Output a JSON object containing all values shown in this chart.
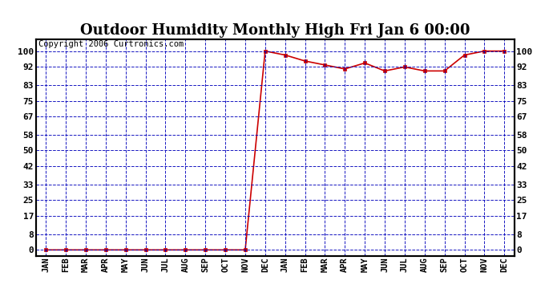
{
  "title": "Outdoor Humidity Monthly High Fri Jan 6 00:00",
  "copyright": "Copyright 2006 Curtronics.com",
  "x_labels": [
    "JAN",
    "FEB",
    "MAR",
    "APR",
    "MAY",
    "JUN",
    "JUL",
    "AUG",
    "SEP",
    "OCT",
    "NOV",
    "DEC",
    "JAN",
    "FEB",
    "MAR",
    "APR",
    "MAY",
    "JUN",
    "JUL",
    "AUG",
    "SEP",
    "OCT",
    "NOV",
    "DEC"
  ],
  "y_data": [
    0,
    0,
    0,
    0,
    0,
    0,
    0,
    0,
    0,
    0,
    0,
    100,
    98,
    95,
    93,
    91,
    94,
    90,
    92,
    90,
    90,
    98,
    100,
    100
  ],
  "y_ticks": [
    0,
    8,
    17,
    25,
    33,
    42,
    50,
    58,
    67,
    75,
    83,
    92,
    100
  ],
  "ylim": [
    -3,
    106
  ],
  "xlim": [
    -0.5,
    23.5
  ],
  "line_color": "#cc0000",
  "bg_color": "#ffffff",
  "plot_bg_color": "#ffffff",
  "grid_color": "#0000bb",
  "border_color": "#000000",
  "title_fontsize": 13,
  "copyright_fontsize": 7.5,
  "tick_fontsize": 8,
  "xlabel_fontsize": 7.5
}
